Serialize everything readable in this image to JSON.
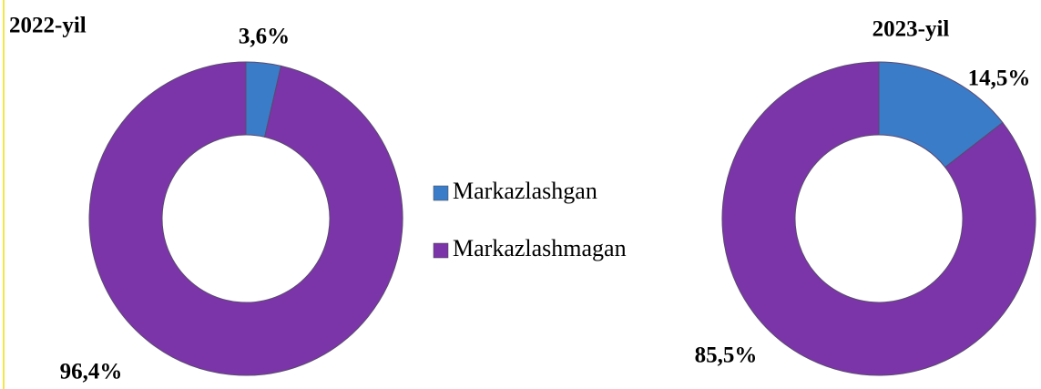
{
  "chart_data": [
    {
      "type": "pie",
      "title": "2022-yil",
      "categories": [
        "Markazlashgan",
        "Markazlashmagan"
      ],
      "values": [
        3.6,
        96.4
      ],
      "value_labels": [
        "3,6%",
        "96,4%"
      ],
      "colors": [
        "#3b7cc9",
        "#7b35a8"
      ]
    },
    {
      "type": "pie",
      "title": "2023-yil",
      "values": [
        14.5,
        85.5
      ],
      "value_labels": [
        "14,5%",
        "85,5%"
      ],
      "colors": [
        "#3b7cc9",
        "#7b35a8"
      ]
    }
  ]
}
